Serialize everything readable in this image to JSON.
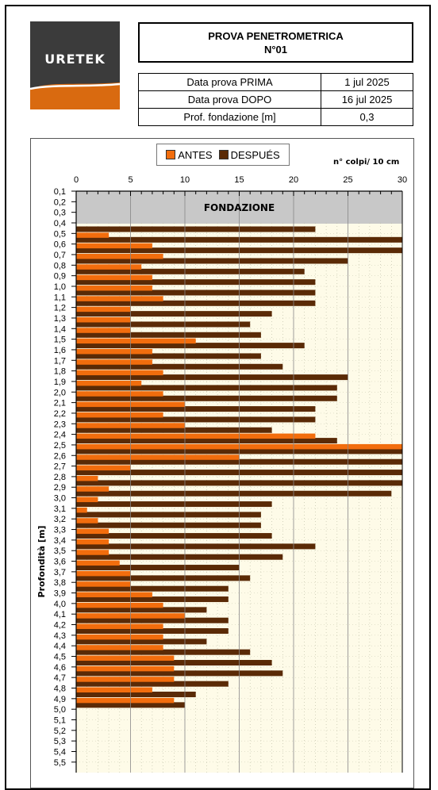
{
  "logo": {
    "text": "URETEK"
  },
  "header": {
    "title": "PROVA PENETROMETRICA",
    "subtitle": "N°01"
  },
  "info_rows": [
    {
      "label": "Data prova PRIMA",
      "value": "1 jul 2025"
    },
    {
      "label": "Data prova DOPO",
      "value": "16 jul 2025"
    },
    {
      "label": "Prof. fondazione [m]",
      "value": "0,3"
    }
  ],
  "colors": {
    "antes": "#f26d0d",
    "despues": "#5a2a06",
    "plot_bg": "#fefbe8",
    "fondazione_bg": "#c8c8c8"
  },
  "chart_data": {
    "type": "bar",
    "orientation": "horizontal",
    "x_unit_label": "n° colpi/ 10 cm",
    "ylabel": "Profondità [m]",
    "xlim": [
      0,
      30
    ],
    "x_ticks": [
      "0",
      "5",
      "10",
      "15",
      "20",
      "25",
      "30"
    ],
    "legend": [
      "ANTES",
      "DESPUÉS"
    ],
    "legend_position": "top",
    "band_label": "FONDAZIONE",
    "band_depths": [
      "0,1",
      "0,2",
      "0,3"
    ],
    "depths": [
      "0,1",
      "0,2",
      "0,3",
      "0,4",
      "0,5",
      "0,6",
      "0,7",
      "0,8",
      "0,9",
      "1,0",
      "1,1",
      "1,2",
      "1,3",
      "1,4",
      "1,5",
      "1,6",
      "1,7",
      "1,8",
      "1,9",
      "2,0",
      "2,1",
      "2,2",
      "2,3",
      "2,4",
      "2,5",
      "2,6",
      "2,7",
      "2,8",
      "2,9",
      "3,0",
      "3,1",
      "3,2",
      "3,3",
      "3,4",
      "3,5",
      "3,6",
      "3,7",
      "3,8",
      "3,9",
      "4,0",
      "4,1",
      "4,2",
      "4,3",
      "4,4",
      "4,5",
      "4,6",
      "4,7",
      "4,8",
      "4,9",
      "5,0",
      "5,1",
      "5,2",
      "5,3",
      "5,4",
      "5,5"
    ],
    "series": [
      {
        "name": "ANTES",
        "values": [
          null,
          null,
          null,
          0,
          3,
          7,
          8,
          6,
          7,
          7,
          8,
          5,
          5,
          5,
          11,
          7,
          7,
          8,
          6,
          8,
          10,
          8,
          10,
          22,
          30,
          15,
          5,
          2,
          3,
          2,
          1,
          2,
          3,
          3,
          3,
          4,
          5,
          5,
          7,
          8,
          10,
          8,
          8,
          8,
          9,
          9,
          9,
          7,
          9,
          0,
          0,
          0,
          0,
          0,
          0
        ]
      },
      {
        "name": "DESPUÉS",
        "values": [
          null,
          null,
          null,
          22,
          30,
          30,
          25,
          21,
          22,
          22,
          22,
          18,
          16,
          17,
          21,
          17,
          19,
          25,
          24,
          24,
          22,
          22,
          18,
          24,
          30,
          30,
          30,
          30,
          29,
          18,
          17,
          17,
          18,
          22,
          19,
          15,
          16,
          14,
          14,
          12,
          14,
          14,
          12,
          16,
          18,
          19,
          14,
          11,
          10,
          0,
          0,
          0,
          0,
          0,
          0
        ]
      }
    ]
  }
}
